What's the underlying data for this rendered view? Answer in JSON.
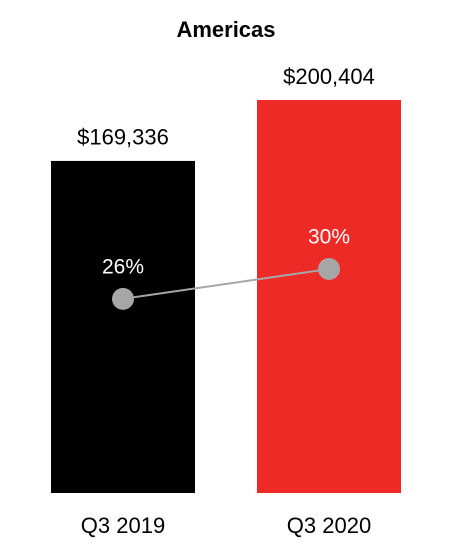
{
  "chart_data": {
    "type": "bar",
    "title": "Americas",
    "categories": [
      "Q3 2019",
      "Q3 2020"
    ],
    "series": [
      {
        "type": "bar",
        "colors": [
          "#000000",
          "#ee2a27"
        ],
        "values": [
          169336,
          200404
        ],
        "value_labels": [
          "$169,336",
          "$200,404"
        ]
      },
      {
        "type": "line",
        "axis": "y2",
        "color": "#a6a6a6",
        "values": [
          26,
          30
        ],
        "value_labels": [
          "26%",
          "30%"
        ]
      }
    ]
  }
}
